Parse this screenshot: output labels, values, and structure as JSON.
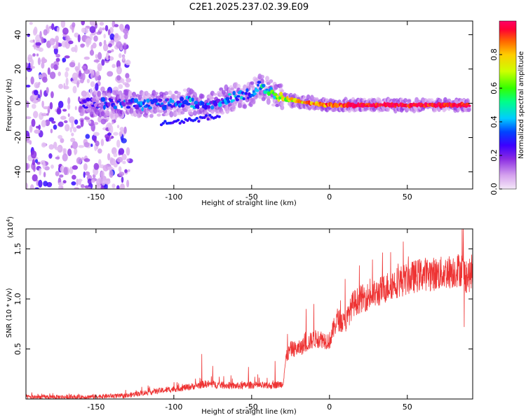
{
  "title": "C2E1.2025.237.02.39.E09",
  "chart_data": [
    {
      "type": "heatmap",
      "xlabel": "Height of straight line (km)",
      "ylabel": "Frequency (Hz)",
      "xlim": [
        -195,
        92
      ],
      "ylim": [
        -50,
        48
      ],
      "xticks": [
        -150,
        -100,
        -50,
        0,
        50
      ],
      "yticks": [
        -40,
        -20,
        0,
        20,
        40
      ],
      "colorbar": {
        "label": "Normalized spectral amplitude",
        "range": [
          0,
          1
        ],
        "ticks": [
          0.0,
          0.2,
          0.4,
          0.6,
          0.8
        ],
        "tick_labels": [
          "0.0",
          "0.2",
          "0.4",
          "0.6",
          "0.8"
        ],
        "colors": [
          "#f4e8f8",
          "#d6a3ee",
          "#8a2be2",
          "#3c00ff",
          "#0044ff",
          "#00ccff",
          "#00ff88",
          "#33ff00",
          "#ccff00",
          "#ffcc00",
          "#ff6600",
          "#ff0033",
          "#ff0066"
        ]
      },
      "ridge": {
        "description": "dominant frequency track",
        "x": [
          -160,
          -140,
          -120,
          -100,
          -90,
          -80,
          -70,
          -60,
          -50,
          -45,
          -40,
          -35,
          -30,
          -20,
          -10,
          0,
          20,
          40,
          60,
          80,
          90
        ],
        "y": [
          0,
          0,
          -1,
          0,
          1,
          -3,
          1,
          4,
          6,
          10,
          8,
          5,
          3,
          1,
          0,
          -1,
          -1,
          -1,
          -1,
          -1,
          -1
        ],
        "amplitude": [
          0.15,
          0.25,
          0.3,
          0.3,
          0.35,
          0.3,
          0.3,
          0.35,
          0.35,
          0.4,
          0.45,
          0.55,
          0.65,
          0.75,
          0.8,
          0.85,
          0.95,
          0.95,
          0.95,
          0.95,
          0.9
        ]
      },
      "noise_region_x": [
        -195,
        -128
      ]
    },
    {
      "type": "line",
      "series": [
        {
          "name": "SNR",
          "color": "#ee3333"
        }
      ],
      "xlabel": "Height of straight line (km)",
      "ylabel": "SNR (10 * v/v)",
      "yscale_label": "(x10",
      "yscale_exp": "4",
      "xlim": [
        -195,
        92
      ],
      "ylim": [
        0,
        1.7
      ],
      "xticks": [
        -150,
        -100,
        -50,
        0,
        50
      ],
      "yticks": [
        0.5,
        1.0,
        1.5
      ],
      "ytick_labels": [
        "0.5",
        "1.0",
        "1.5"
      ],
      "x": [
        -195,
        -180,
        -160,
        -140,
        -130,
        -125,
        -120,
        -110,
        -100,
        -90,
        -80,
        -70,
        -60,
        -50,
        -40,
        -35,
        -30,
        -28,
        -25,
        -20,
        -15,
        -10,
        -5,
        0,
        5,
        10,
        15,
        20,
        30,
        40,
        50,
        60,
        70,
        80,
        85,
        88,
        92
      ],
      "y": [
        0.02,
        0.02,
        0.02,
        0.03,
        0.03,
        0.05,
        0.06,
        0.08,
        0.1,
        0.12,
        0.15,
        0.14,
        0.13,
        0.14,
        0.13,
        0.14,
        0.15,
        0.4,
        0.5,
        0.5,
        0.55,
        0.6,
        0.6,
        0.58,
        0.8,
        0.75,
        0.95,
        1.0,
        1.05,
        1.15,
        1.2,
        1.25,
        1.25,
        1.28,
        1.3,
        1.22,
        1.25
      ],
      "spikes": [
        {
          "x": -82,
          "y": 0.45
        },
        {
          "x": -75,
          "y": 0.33
        },
        {
          "x": -52,
          "y": 0.32
        },
        {
          "x": -35,
          "y": 0.38
        },
        {
          "x": -27,
          "y": 0.65
        },
        {
          "x": -15,
          "y": 0.9
        },
        {
          "x": -10,
          "y": 0.95
        },
        {
          "x": 10,
          "y": 1.2
        },
        {
          "x": 48,
          "y": 1.3
        },
        {
          "x": 78,
          "y": 1.35
        },
        {
          "x": 86,
          "y": 1.7
        },
        {
          "x": 86.5,
          "y": 0.72
        }
      ]
    }
  ]
}
